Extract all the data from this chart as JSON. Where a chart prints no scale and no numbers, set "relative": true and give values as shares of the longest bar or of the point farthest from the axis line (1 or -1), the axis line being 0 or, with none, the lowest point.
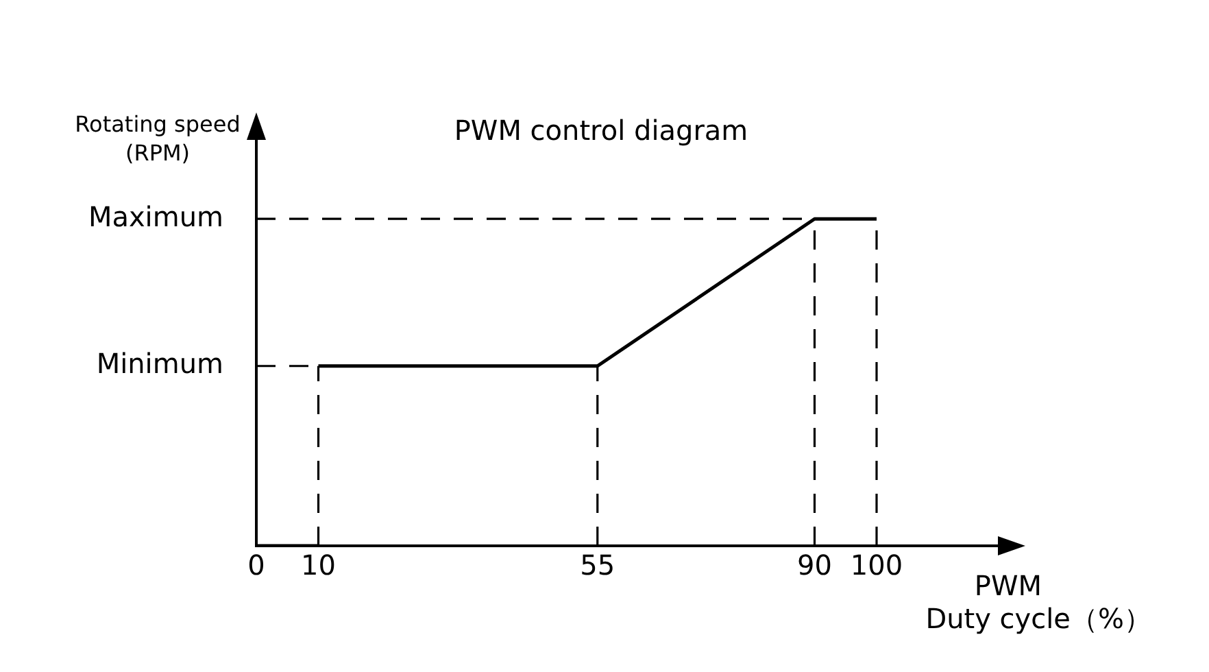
{
  "chart_data": {
    "type": "line",
    "title": "PWM control diagram",
    "xlabel": "PWM\nDuty cycle（%）",
    "ylabel": "Rotating speed\n(RPM)",
    "xlim": [
      0,
      120
    ],
    "xticks": [
      0,
      10,
      55,
      90,
      100
    ],
    "relative": true,
    "annotations": [
      {
        "text": "Maximum",
        "x": 0,
        "y": 1
      },
      {
        "text": "Minimum",
        "x": 0,
        "y": 0.55
      }
    ],
    "marker": "none",
    "grid": false,
    "series": [
      {
        "x": [
          0,
          10
        ],
        "values": [
          0,
          0
        ],
        "color": "#000000"
      },
      {
        "x": [
          10,
          55,
          90,
          100
        ],
        "values": [
          0.55,
          0.55,
          1,
          1
        ],
        "color": "#000000"
      },
      {
        "x": [
          0,
          10
        ],
        "values": [
          0.55,
          0.55
        ],
        "color": "#000000",
        "line_style": "dashed"
      },
      {
        "x": [
          0,
          90
        ],
        "values": [
          1,
          1
        ],
        "color": "#000000",
        "line_style": "dashed"
      },
      {
        "x": [
          10,
          10
        ],
        "values": [
          0,
          0.55
        ],
        "color": "#000000",
        "line_style": "dashed"
      },
      {
        "x": [
          55,
          55
        ],
        "values": [
          0,
          0.55
        ],
        "color": "#000000",
        "line_style": "dashed"
      },
      {
        "x": [
          90,
          90
        ],
        "values": [
          0,
          1
        ],
        "color": "#000000",
        "line_style": "dashed"
      },
      {
        "x": [
          100,
          100
        ],
        "values": [
          0,
          1
        ],
        "color": "#000000",
        "line_style": "dashed"
      }
    ]
  }
}
